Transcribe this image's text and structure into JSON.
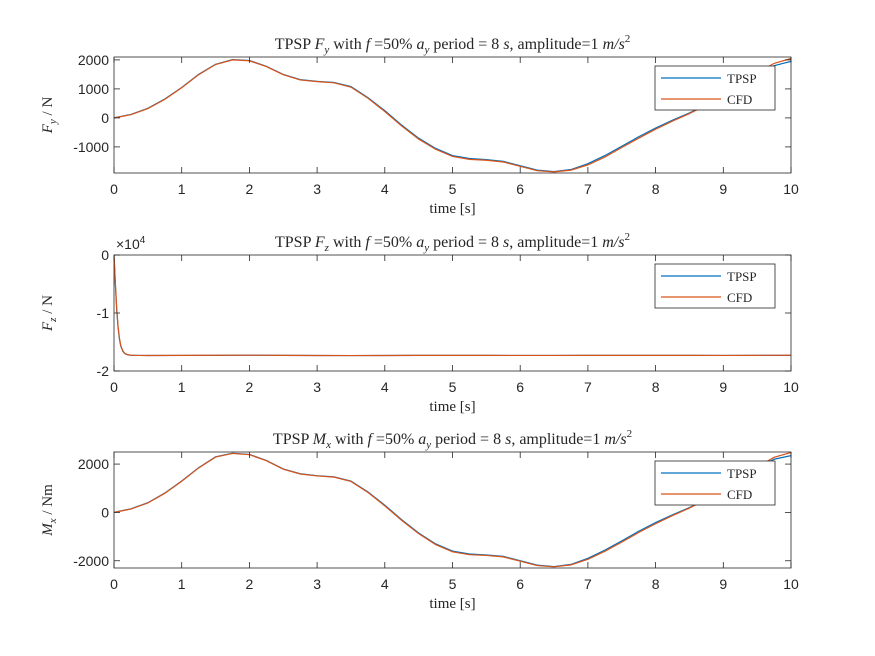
{
  "colors": {
    "tpsp": "#0072bd",
    "cfd": "#d95319",
    "axis": "#262626"
  },
  "chart_data": [
    {
      "type": "line",
      "title": "TPSP F_y with f =50% a_y period = 8 s, amplitude=1 m/s^2",
      "title_parts": {
        "pre": "TPSP ",
        "sym": "F",
        "sub": "y",
        "mid1": " with ",
        "f": "f",
        "mid2": " =50% ",
        "a": "a",
        "asub": "y",
        "mid3": " period = 8 ",
        "s": "s",
        "mid4": ", amplitude=1 ",
        "unit": "m/s",
        "unitsup": "2"
      },
      "xlabel": "time [s]",
      "ylabel_parts": {
        "sym": "F",
        "sub": "y",
        "rest": " / N"
      },
      "xlim": [
        0,
        10
      ],
      "ylim": [
        -1900,
        2100
      ],
      "x_ticks": [
        0,
        1,
        2,
        3,
        4,
        5,
        6,
        7,
        8,
        9,
        10
      ],
      "y_ticks": [
        -1000,
        0,
        1000,
        2000
      ],
      "y_tick_labels": [
        "-1000",
        "0",
        "1000",
        "2000"
      ],
      "exponent_label": "",
      "legend_position": "top-right",
      "series": [
        {
          "name": "TPSP",
          "color": "#0072bd",
          "x": [
            0,
            0.25,
            0.5,
            0.75,
            1,
            1.25,
            1.5,
            1.75,
            2,
            2.25,
            2.5,
            2.75,
            3,
            3.25,
            3.5,
            3.75,
            4,
            4.25,
            4.5,
            4.75,
            5,
            5.25,
            5.5,
            5.75,
            6,
            6.25,
            6.5,
            6.75,
            7,
            7.25,
            7.5,
            7.75,
            8,
            8.25,
            8.5,
            8.75,
            9,
            9.25,
            9.5,
            9.75,
            10
          ],
          "y": [
            0,
            120,
            330,
            650,
            1050,
            1500,
            1850,
            2010,
            1980,
            1780,
            1500,
            1320,
            1260,
            1220,
            1080,
            700,
            250,
            -250,
            -700,
            -1050,
            -1300,
            -1400,
            -1440,
            -1500,
            -1650,
            -1800,
            -1850,
            -1780,
            -1580,
            -1300,
            -980,
            -650,
            -350,
            -80,
            170,
            450,
            780,
            1150,
            1500,
            1800,
            1950
          ]
        },
        {
          "name": "CFD",
          "color": "#d95319",
          "x": [
            0,
            0.25,
            0.5,
            0.75,
            1,
            1.25,
            1.5,
            1.75,
            2,
            2.25,
            2.5,
            2.75,
            3,
            3.25,
            3.5,
            3.75,
            4,
            4.25,
            4.5,
            4.75,
            5,
            5.25,
            5.5,
            5.75,
            6,
            6.25,
            6.5,
            6.75,
            7,
            7.25,
            7.5,
            7.75,
            8,
            8.25,
            8.5,
            8.75,
            9,
            9.25,
            9.5,
            9.75,
            10
          ],
          "y": [
            0,
            110,
            320,
            640,
            1040,
            1490,
            1840,
            2000,
            1970,
            1770,
            1490,
            1310,
            1250,
            1210,
            1060,
            680,
            220,
            -280,
            -730,
            -1080,
            -1330,
            -1430,
            -1460,
            -1520,
            -1670,
            -1820,
            -1860,
            -1800,
            -1620,
            -1350,
            -1020,
            -700,
            -390,
            -110,
            150,
            440,
            780,
            1170,
            1560,
            1880,
            2050
          ]
        }
      ]
    },
    {
      "type": "line",
      "title": "TPSP F_z with f =50% a_y period = 8 s, amplitude=1 m/s^2",
      "title_parts": {
        "pre": "TPSP ",
        "sym": "F",
        "sub": "z",
        "mid1": " with ",
        "f": "f",
        "mid2": " =50% ",
        "a": "a",
        "asub": "y",
        "mid3": " period = 8 ",
        "s": "s",
        "mid4": ", amplitude=1 ",
        "unit": "m/s",
        "unitsup": "2"
      },
      "xlabel": "time [s]",
      "ylabel_parts": {
        "sym": "F",
        "sub": "z",
        "rest": " / N"
      },
      "xlim": [
        0,
        10
      ],
      "ylim": [
        -20000,
        0
      ],
      "x_ticks": [
        0,
        1,
        2,
        3,
        4,
        5,
        6,
        7,
        8,
        9,
        10
      ],
      "y_ticks": [
        -20000,
        -10000,
        0
      ],
      "y_tick_labels": [
        "-2",
        "-1",
        "0"
      ],
      "exponent_label": "×10",
      "exponent_sup": "4",
      "legend_position": "top-right",
      "series": [
        {
          "name": "TPSP",
          "color": "#0072bd",
          "x": [
            0,
            0.02,
            0.04,
            0.06,
            0.08,
            0.1,
            0.13,
            0.16,
            0.2,
            0.25,
            0.3,
            0.4,
            0.5,
            1,
            1.5,
            2,
            2.5,
            3,
            3.5,
            4,
            4.5,
            5,
            5.5,
            6,
            6.5,
            7,
            7.5,
            8,
            8.5,
            9,
            9.5,
            10
          ],
          "y": [
            0,
            -5000,
            -9500,
            -12500,
            -14500,
            -15700,
            -16600,
            -17000,
            -17200,
            -17280,
            -17300,
            -17320,
            -17330,
            -17320,
            -17300,
            -17280,
            -17300,
            -17330,
            -17340,
            -17330,
            -17310,
            -17300,
            -17310,
            -17320,
            -17320,
            -17310,
            -17300,
            -17300,
            -17310,
            -17320,
            -17310,
            -17300
          ]
        },
        {
          "name": "CFD",
          "color": "#d95319",
          "x": [
            0,
            0.02,
            0.04,
            0.06,
            0.08,
            0.1,
            0.13,
            0.16,
            0.2,
            0.25,
            0.3,
            0.4,
            0.5,
            1,
            1.5,
            2,
            2.5,
            3,
            3.5,
            4,
            4.5,
            5,
            5.5,
            6,
            6.5,
            7,
            7.5,
            8,
            8.5,
            9,
            9.5,
            10
          ],
          "y": [
            0,
            -4800,
            -9200,
            -12300,
            -14300,
            -15600,
            -16500,
            -16950,
            -17180,
            -17270,
            -17300,
            -17320,
            -17330,
            -17310,
            -17290,
            -17270,
            -17300,
            -17330,
            -17340,
            -17330,
            -17310,
            -17300,
            -17300,
            -17320,
            -17320,
            -17310,
            -17300,
            -17300,
            -17310,
            -17320,
            -17300,
            -17290
          ]
        }
      ]
    },
    {
      "type": "line",
      "title": "TPSP M_x with f =50% a_y period = 8 s, amplitude=1 m/s^2",
      "title_parts": {
        "pre": "TPSP ",
        "sym": "M",
        "sub": "x",
        "mid1": " with ",
        "f": "f",
        "mid2": " =50% ",
        "a": "a",
        "asub": "y",
        "mid3": " period = 8 ",
        "s": "s",
        "mid4": ", amplitude=1 ",
        "unit": "m/s",
        "unitsup": "2"
      },
      "xlabel": "time [s]",
      "ylabel_parts": {
        "sym": "M",
        "sub": "x",
        "rest": " / Nm"
      },
      "xlim": [
        0,
        10
      ],
      "ylim": [
        -2300,
        2500
      ],
      "x_ticks": [
        0,
        1,
        2,
        3,
        4,
        5,
        6,
        7,
        8,
        9,
        10
      ],
      "y_ticks": [
        -2000,
        0,
        2000
      ],
      "y_tick_labels": [
        "-2000",
        "0",
        "2000"
      ],
      "exponent_label": "",
      "legend_position": "top-right",
      "series": [
        {
          "name": "TPSP",
          "color": "#0072bd",
          "x": [
            0,
            0.25,
            0.5,
            0.75,
            1,
            1.25,
            1.5,
            1.75,
            2,
            2.25,
            2.5,
            2.75,
            3,
            3.25,
            3.5,
            3.75,
            4,
            4.25,
            4.5,
            4.75,
            5,
            5.25,
            5.5,
            5.75,
            6,
            6.25,
            6.5,
            6.75,
            7,
            7.25,
            7.5,
            7.75,
            8,
            8.25,
            8.5,
            8.75,
            9,
            9.25,
            9.5,
            9.75,
            10
          ],
          "y": [
            0,
            150,
            400,
            800,
            1300,
            1850,
            2300,
            2450,
            2400,
            2150,
            1800,
            1600,
            1520,
            1470,
            1300,
            850,
            300,
            -300,
            -850,
            -1300,
            -1600,
            -1720,
            -1760,
            -1820,
            -2000,
            -2180,
            -2240,
            -2150,
            -1900,
            -1560,
            -1180,
            -780,
            -420,
            -100,
            200,
            550,
            950,
            1400,
            1830,
            2200,
            2350
          ]
        },
        {
          "name": "CFD",
          "color": "#d95319",
          "x": [
            0,
            0.25,
            0.5,
            0.75,
            1,
            1.25,
            1.5,
            1.75,
            2,
            2.25,
            2.5,
            2.75,
            3,
            3.25,
            3.5,
            3.75,
            4,
            4.25,
            4.5,
            4.75,
            5,
            5.25,
            5.5,
            5.75,
            6,
            6.25,
            6.5,
            6.75,
            7,
            7.25,
            7.5,
            7.75,
            8,
            8.25,
            8.5,
            8.75,
            9,
            9.25,
            9.5,
            9.75,
            10
          ],
          "y": [
            0,
            140,
            390,
            790,
            1290,
            1840,
            2290,
            2440,
            2390,
            2140,
            1790,
            1590,
            1510,
            1460,
            1280,
            830,
            270,
            -330,
            -880,
            -1330,
            -1630,
            -1750,
            -1780,
            -1840,
            -2020,
            -2200,
            -2250,
            -2170,
            -1940,
            -1610,
            -1230,
            -830,
            -470,
            -130,
            180,
            540,
            950,
            1420,
            1880,
            2280,
            2480
          ]
        }
      ]
    }
  ]
}
